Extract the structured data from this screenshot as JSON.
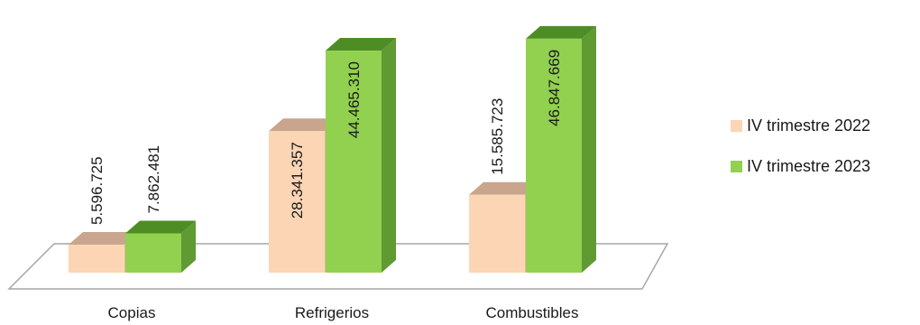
{
  "chart_data": {
    "type": "bar",
    "title": "",
    "categories": [
      "Copias",
      "Refrigerios",
      "Combustibles"
    ],
    "series": [
      {
        "name": "IV trimestre 2022",
        "values": [
          5596725,
          28341357,
          15585723
        ],
        "labels": [
          "5.596.725",
          "28.341.357",
          "15.585.723"
        ],
        "color": "#fcd5b5",
        "top_color": "#c9a58d",
        "side_color": "#e3b89a"
      },
      {
        "name": "IV trimestre 2023",
        "values": [
          7862481,
          44465310,
          46847669
        ],
        "labels": [
          "7.862.481",
          "44.465.310",
          "46.847.669"
        ],
        "color": "#92d050",
        "top_color": "#4e8d24",
        "side_color": "#5f9a32"
      }
    ],
    "legend_position": "right",
    "grid": false
  }
}
